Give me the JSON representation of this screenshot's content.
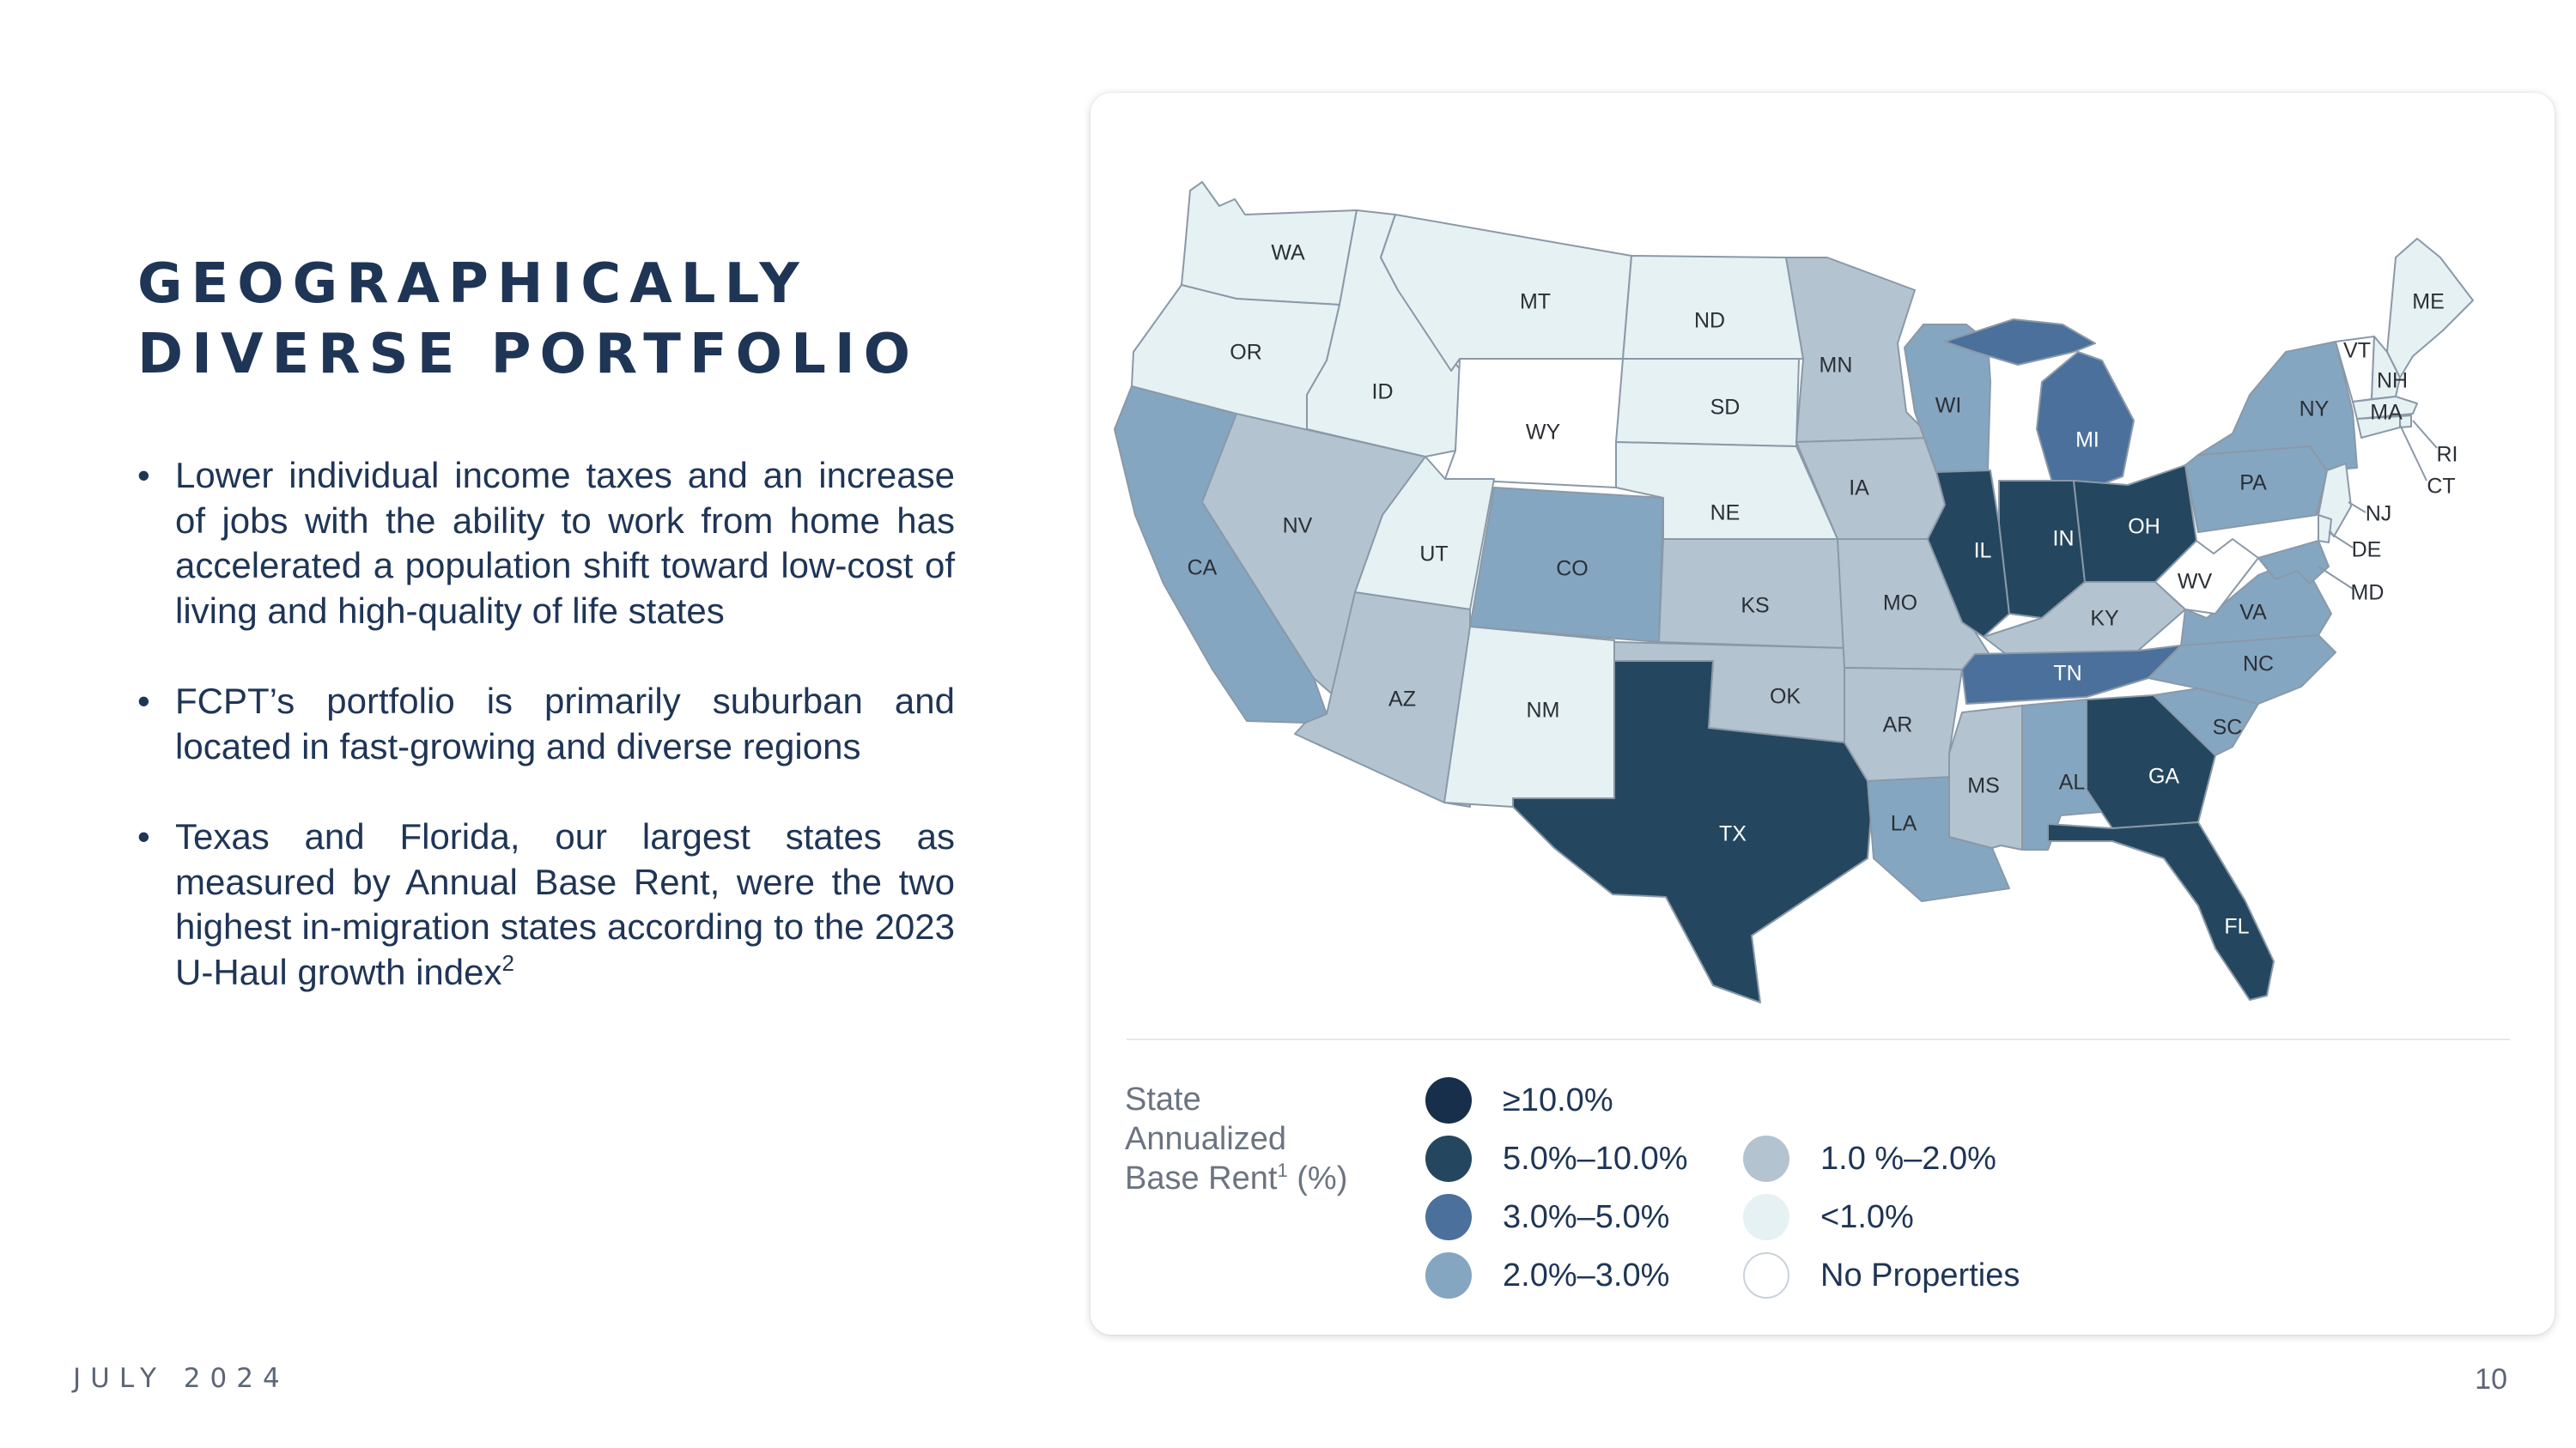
{
  "slide": {
    "title_lines": [
      "GEOGRAPHICALLY",
      "DIVERSE PORTFOLIO"
    ],
    "bullets": [
      {
        "text": "Lower individual income taxes and an increase of jobs with the ability to work from home has accelerated a population shift toward low-cost of living and high-quality of life states"
      },
      {
        "text": "FCPT’s portfolio is primarily suburban and located in fast-growing and diverse regions"
      },
      {
        "text": "Texas and Florida, our largest states as measured by Annual Base Rent, were the two highest in-migration states according to the 2023 U-Haul growth index",
        "footnote": "2"
      }
    ],
    "footer_date": "JULY 2024",
    "page_number": "10"
  },
  "map": {
    "legend": {
      "title_lines": [
        "State",
        "Annualized",
        "Base Rent"
      ],
      "title_footnote": "1",
      "title_unit": " (%)",
      "items": [
        {
          "key": "t1",
          "label": "≥10.0%",
          "color": "#172f4b"
        },
        {
          "key": "t2",
          "label": "5.0%–10.0%",
          "color": "#24475f"
        },
        {
          "key": "t3",
          "label": "3.0%–5.0%",
          "color": "#4a709b"
        },
        {
          "key": "t4",
          "label": "2.0%–3.0%",
          "color": "#84a6c1"
        },
        {
          "key": "t5",
          "label": "1.0 %–2.0%",
          "color": "#b3c4d0"
        },
        {
          "key": "t6",
          "label": "<1.0%",
          "color": "#e6f1f4"
        },
        {
          "key": "t7",
          "label": "No Properties",
          "color": "#ffffff"
        }
      ]
    },
    "states": [
      {
        "code": "WA",
        "tier": "t6"
      },
      {
        "code": "OR",
        "tier": "t6"
      },
      {
        "code": "CA",
        "tier": "t4"
      },
      {
        "code": "NV",
        "tier": "t5"
      },
      {
        "code": "ID",
        "tier": "t6"
      },
      {
        "code": "MT",
        "tier": "t6"
      },
      {
        "code": "WY",
        "tier": "t7"
      },
      {
        "code": "UT",
        "tier": "t6"
      },
      {
        "code": "AZ",
        "tier": "t5"
      },
      {
        "code": "CO",
        "tier": "t4"
      },
      {
        "code": "NM",
        "tier": "t6"
      },
      {
        "code": "ND",
        "tier": "t6"
      },
      {
        "code": "SD",
        "tier": "t6"
      },
      {
        "code": "NE",
        "tier": "t6"
      },
      {
        "code": "KS",
        "tier": "t5"
      },
      {
        "code": "OK",
        "tier": "t5"
      },
      {
        "code": "TX",
        "tier": "t2"
      },
      {
        "code": "MN",
        "tier": "t5"
      },
      {
        "code": "IA",
        "tier": "t5"
      },
      {
        "code": "MO",
        "tier": "t5"
      },
      {
        "code": "AR",
        "tier": "t5"
      },
      {
        "code": "LA",
        "tier": "t4"
      },
      {
        "code": "WI",
        "tier": "t4"
      },
      {
        "code": "IL",
        "tier": "t2"
      },
      {
        "code": "MI",
        "tier": "t3"
      },
      {
        "code": "IN",
        "tier": "t2"
      },
      {
        "code": "OH",
        "tier": "t2"
      },
      {
        "code": "KY",
        "tier": "t5"
      },
      {
        "code": "TN",
        "tier": "t3"
      },
      {
        "code": "MS",
        "tier": "t5"
      },
      {
        "code": "AL",
        "tier": "t4"
      },
      {
        "code": "GA",
        "tier": "t2"
      },
      {
        "code": "FL",
        "tier": "t2"
      },
      {
        "code": "SC",
        "tier": "t4"
      },
      {
        "code": "NC",
        "tier": "t4"
      },
      {
        "code": "VA",
        "tier": "t4"
      },
      {
        "code": "WV",
        "tier": "t7"
      },
      {
        "code": "PA",
        "tier": "t4"
      },
      {
        "code": "NY",
        "tier": "t4"
      },
      {
        "code": "ME",
        "tier": "t6"
      },
      {
        "code": "VT",
        "tier": "t7"
      },
      {
        "code": "NH",
        "tier": "t6"
      },
      {
        "code": "MA",
        "tier": "t6"
      },
      {
        "code": "RI",
        "tier": "t6"
      },
      {
        "code": "CT",
        "tier": "t6"
      },
      {
        "code": "NJ",
        "tier": "t6"
      },
      {
        "code": "DE",
        "tier": "t6"
      },
      {
        "code": "MD",
        "tier": "t4"
      }
    ]
  }
}
